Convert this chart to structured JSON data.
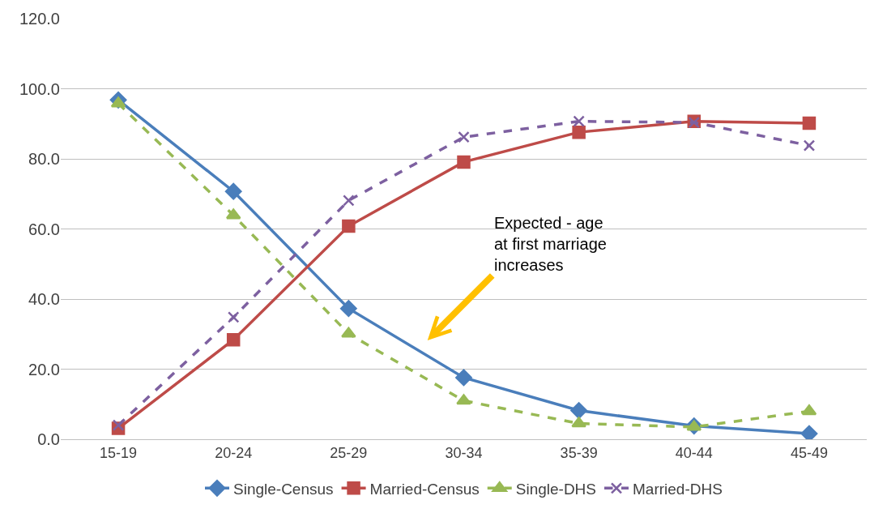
{
  "chart_data": {
    "type": "line",
    "categories": [
      "15-19",
      "20-24",
      "25-29",
      "30-34",
      "35-39",
      "40-44",
      "45-49"
    ],
    "series": [
      {
        "name": "Single-Census",
        "color": "#4a7ebb",
        "values": [
          96.8,
          70.7,
          37.3,
          17.6,
          8.2,
          3.8,
          1.6
        ],
        "marker": "diamond",
        "line_style": "solid"
      },
      {
        "name": "Married-Census",
        "color": "#be4b48",
        "values": [
          3.1,
          28.4,
          60.8,
          79.1,
          87.6,
          90.7,
          90.2
        ],
        "marker": "square",
        "line_style": "solid"
      },
      {
        "name": "Single-DHS",
        "color": "#98b954",
        "values": [
          95.8,
          63.9,
          30.1,
          11.0,
          4.5,
          3.5,
          8.0
        ],
        "marker": "triangle",
        "line_style": "dashed"
      },
      {
        "name": "Married-DHS",
        "color": "#7d60a0",
        "values": [
          4.0,
          34.8,
          68.1,
          86.2,
          90.7,
          90.4,
          83.8
        ],
        "marker": "cross",
        "line_style": "dashed"
      }
    ],
    "ylim": [
      0,
      120
    ],
    "yticks": [
      {
        "value": 0,
        "label": "0.0"
      },
      {
        "value": 20,
        "label": "20.0"
      },
      {
        "value": 40,
        "label": "40.0"
      },
      {
        "value": 60,
        "label": "60.0"
      },
      {
        "value": 80,
        "label": "80.0"
      },
      {
        "value": 100,
        "label": "100.0"
      },
      {
        "value": 120,
        "label": "120.0"
      }
    ],
    "grid": "y",
    "legend": "bottom",
    "annotations": [
      "Expected - age\nat first marriage\nincreases"
    ]
  }
}
